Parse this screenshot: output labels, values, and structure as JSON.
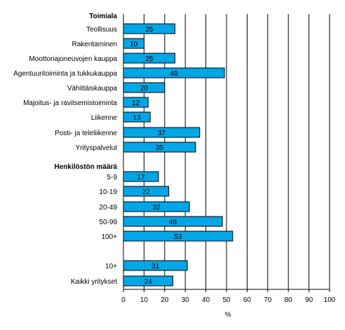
{
  "chart_data": {
    "type": "bar",
    "orientation": "horizontal",
    "xlabel": "%",
    "xlim": [
      0,
      100
    ],
    "xticks": [
      0,
      10,
      20,
      30,
      40,
      50,
      60,
      70,
      80,
      90,
      100
    ],
    "grid": "vertical",
    "bar_color": "#00a6e6",
    "groups": [
      {
        "heading": "Toimiala",
        "categories": [
          "Teollisuus",
          "Rakentaminen",
          "Moottoriajoneuvojen kauppa",
          "Agentuuritoiminta ja tukkukauppa",
          "Vähittäiskauppa",
          "Majoitus- ja ravitsemistoiminta",
          "Liikenne",
          "Posti- ja teleliikenne",
          "Yrityspalvelut"
        ],
        "values": [
          25,
          10,
          25,
          49,
          20,
          12,
          13,
          37,
          35
        ]
      },
      {
        "heading": "Henkilöstön määrä",
        "categories": [
          "5-9",
          "10-19",
          "20-49",
          "50-99",
          "100+"
        ],
        "values": [
          17,
          22,
          32,
          48,
          53
        ]
      },
      {
        "heading": "",
        "categories": [
          "10+",
          "Kaikki yritykset"
        ],
        "values": [
          31,
          24
        ]
      }
    ]
  }
}
